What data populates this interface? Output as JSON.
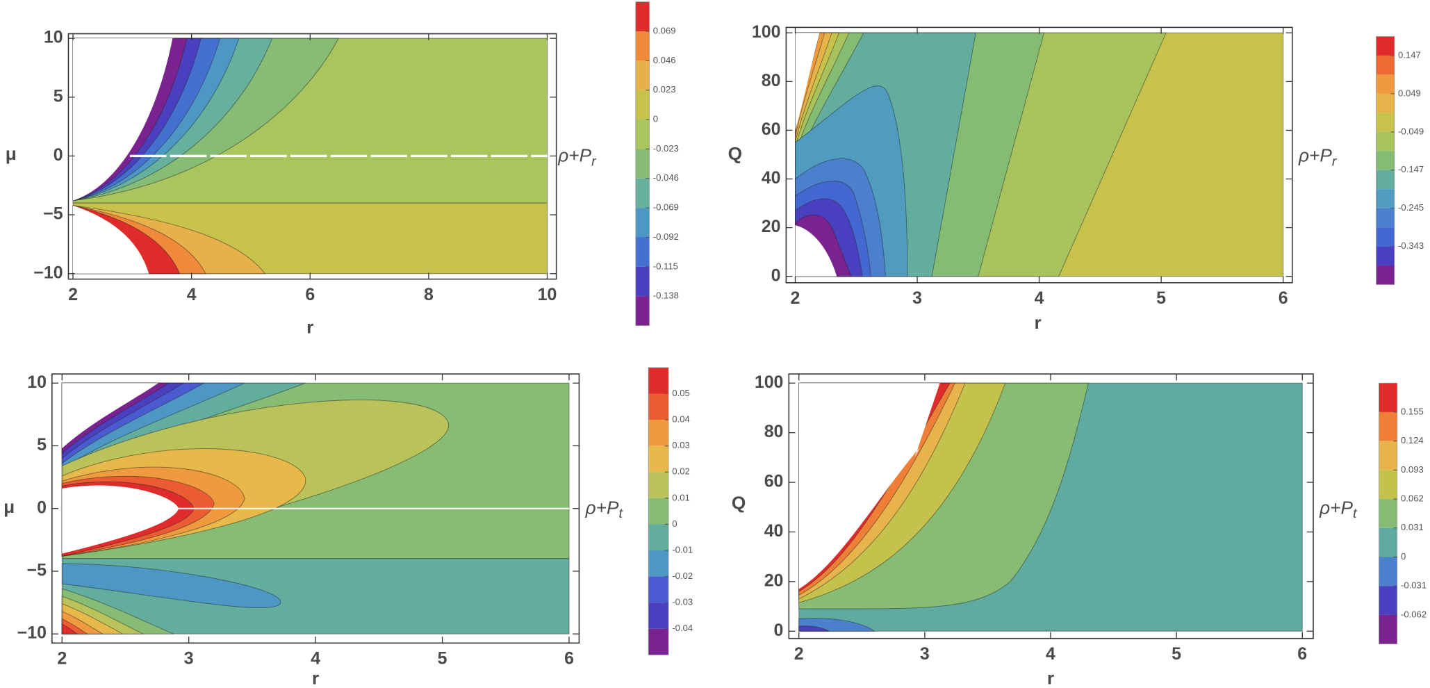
{
  "chart_data": [
    {
      "type": "contour",
      "x_label": "r",
      "y_label": "μ",
      "legend_label": "ρ+P",
      "legend_label_sub": "r",
      "xlim": [
        2,
        10
      ],
      "ylim": [
        -10,
        10
      ],
      "xticks": [
        2,
        4,
        6,
        8,
        10
      ],
      "yticks": [
        {
          "value": -10,
          "label": "−10"
        },
        {
          "value": -5,
          "label": "−5"
        },
        0,
        5,
        10
      ],
      "colorbar": {
        "lim": [
          -0.161,
          0.092
        ],
        "ticks": [
          -0.138,
          -0.115,
          -0.092,
          -0.069,
          -0.046,
          -0.023,
          0,
          0.023,
          0.046,
          0.069
        ],
        "colors": [
          "#e02b2b",
          "#ee8a3a",
          "#e6b04a",
          "#c6c24c",
          "#aac45e",
          "#86bc74",
          "#66b09c",
          "#4d97c4",
          "#4470d0",
          "#4a3fbe",
          "#7a2390"
        ]
      }
    },
    {
      "type": "contour",
      "x_label": "r",
      "y_label": "Q",
      "legend_label": "ρ+P",
      "legend_label_sub": "r",
      "xlim": [
        2,
        6
      ],
      "ylim": [
        0,
        100
      ],
      "xticks": [
        2,
        3,
        4,
        5,
        6
      ],
      "yticks": [
        0,
        20,
        40,
        60,
        80,
        100
      ],
      "colorbar": {
        "lim": [
          -0.441,
          0.196
        ],
        "ticks": [
          -0.343,
          -0.245,
          -0.147,
          -0.049,
          0.049,
          0.147
        ],
        "colors": [
          "#e02b2b",
          "#ec6a33",
          "#ef9a3e",
          "#e6b34a",
          "#c6c24c",
          "#a8c35c",
          "#84bc74",
          "#62ad9e",
          "#4f9cc0",
          "#4a80cc",
          "#4468d2",
          "#4a3fbe",
          "#7a2390"
        ]
      }
    },
    {
      "type": "contour",
      "x_label": "r",
      "y_label": "μ",
      "legend_label": "ρ+P",
      "legend_label_sub": "t",
      "xlim": [
        2,
        6
      ],
      "ylim": [
        -10,
        10
      ],
      "xticks": [
        2,
        3,
        4,
        5,
        6
      ],
      "yticks": [
        {
          "value": -10,
          "label": "−10"
        },
        {
          "value": -5,
          "label": "−5"
        },
        0,
        5,
        10
      ],
      "colorbar": {
        "lim": [
          -0.05,
          0.06
        ],
        "ticks": [
          -0.04,
          -0.03,
          -0.02,
          -0.01,
          0,
          0.01,
          0.02,
          0.03,
          0.04,
          0.05
        ],
        "colors": [
          "#e02b2b",
          "#ec5c33",
          "#ef9a3e",
          "#e6b94a",
          "#b9c35a",
          "#86bc74",
          "#62ad9e",
          "#4d97c4",
          "#4a5ad0",
          "#4a3fbe",
          "#7a2390"
        ]
      }
    },
    {
      "type": "contour",
      "x_label": "r",
      "y_label": "Q",
      "legend_label": "ρ+P",
      "legend_label_sub": "t",
      "xlim": [
        2,
        6
      ],
      "ylim": [
        0,
        100
      ],
      "xticks": [
        2,
        3,
        4,
        5,
        6
      ],
      "yticks": [
        0,
        20,
        40,
        60,
        80,
        100
      ],
      "colorbar": {
        "lim": [
          -0.093,
          0.186
        ],
        "ticks": [
          -0.062,
          -0.031,
          0,
          0.031,
          0.062,
          0.093,
          0.124,
          0.155
        ],
        "colors": [
          "#e02b2b",
          "#ef7f36",
          "#e6b44a",
          "#c4c24c",
          "#86bc74",
          "#5fab9f",
          "#4a80cc",
          "#4a3fbe",
          "#7a2390"
        ]
      }
    }
  ]
}
